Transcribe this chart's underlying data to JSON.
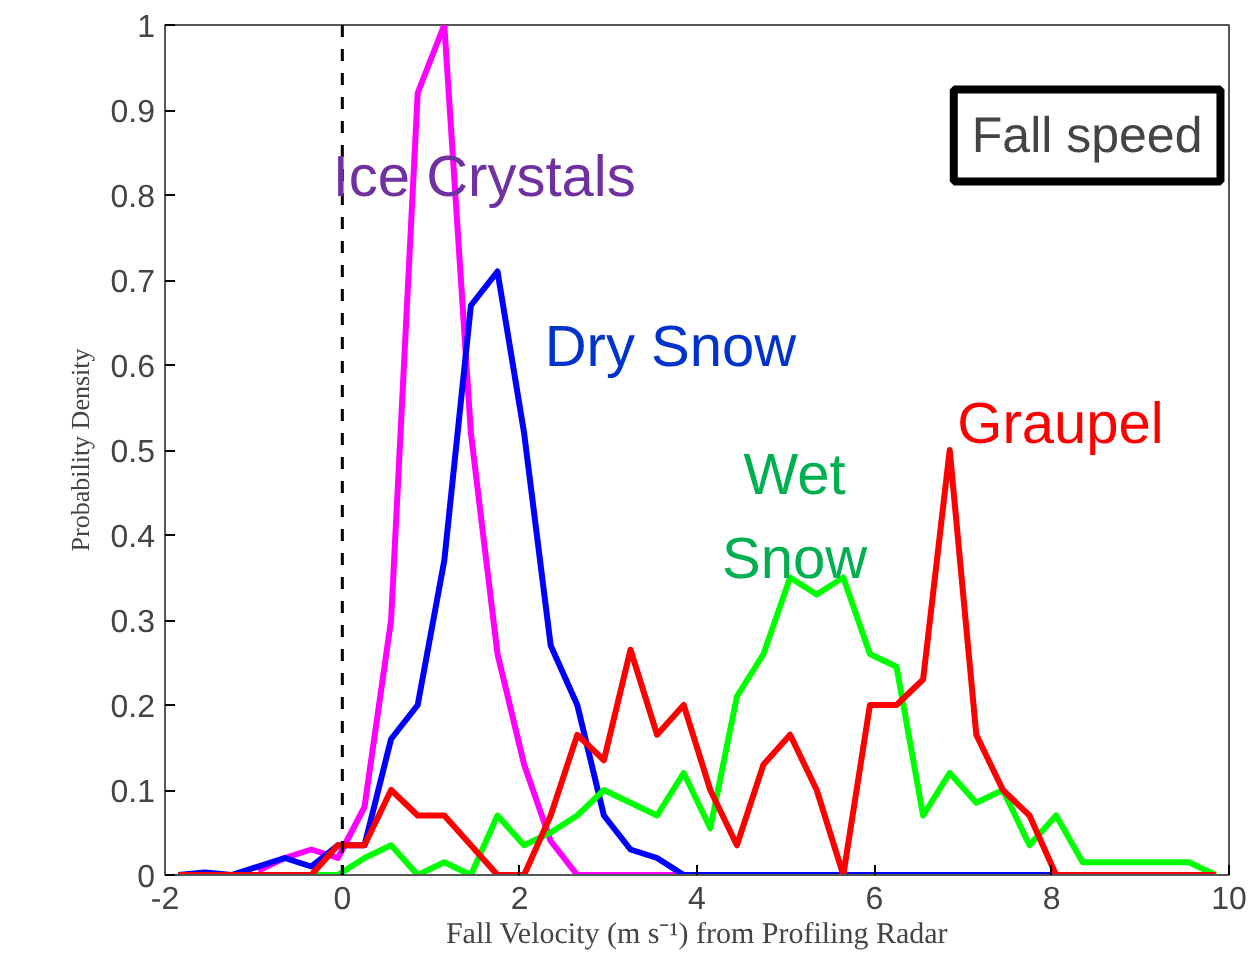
{
  "chart_data": {
    "type": "line",
    "xlabel": "Fall Velocity (m s⁻¹) from Profiling Radar",
    "ylabel": "Probability Density",
    "x": [
      -1.85,
      -1.55,
      -1.25,
      -0.95,
      -0.65,
      -0.35,
      -0.05,
      0.25,
      0.55,
      0.85,
      1.15,
      1.45,
      1.75,
      2.05,
      2.35,
      2.65,
      2.95,
      3.25,
      3.55,
      3.85,
      4.15,
      4.45,
      4.75,
      5.05,
      5.35,
      5.65,
      5.95,
      6.25,
      6.55,
      6.85,
      7.15,
      7.45,
      7.75,
      8.05,
      8.35,
      8.65,
      8.95,
      9.25,
      9.55,
      9.85
    ],
    "series": [
      {
        "name": "Ice Crystals",
        "color": "#ff00ff",
        "values": [
          null,
          null,
          null,
          0.005,
          0.02,
          0.03,
          0.02,
          0.08,
          0.3,
          0.92,
          1.0,
          0.52,
          0.26,
          0.13,
          0.04,
          0,
          0,
          0,
          0,
          0,
          null,
          null,
          null,
          null,
          null,
          null,
          null,
          null,
          null,
          null,
          null,
          null,
          null,
          null,
          null,
          null,
          null,
          null,
          null,
          null
        ]
      },
      {
        "name": "Dry Snow",
        "color": "#0000ff",
        "values": [
          0,
          0.003,
          0,
          0.01,
          0.02,
          0.01,
          0.035,
          0.035,
          0.16,
          0.2,
          0.37,
          0.67,
          0.71,
          0.52,
          0.27,
          0.2,
          0.07,
          0.03,
          0.02,
          0,
          0,
          0,
          0,
          0,
          0,
          0,
          0,
          0,
          0,
          0,
          0,
          0,
          0,
          0,
          0,
          null,
          null,
          null,
          null,
          null
        ]
      },
      {
        "name": "Wet Snow",
        "color": "#00ff00",
        "values": [
          null,
          null,
          null,
          null,
          0,
          0,
          0,
          0.02,
          0.035,
          0,
          0.015,
          0,
          0.07,
          0.035,
          0.05,
          0.07,
          0.1,
          0.085,
          0.07,
          0.12,
          0.055,
          0.21,
          0.26,
          0.35,
          0.33,
          0.35,
          0.26,
          0.245,
          0.07,
          0.12,
          0.085,
          0.1,
          0.035,
          0.07,
          0.015,
          0.015,
          0.015,
          0.015,
          0.015,
          0
        ]
      },
      {
        "name": "Graupel",
        "color": "#ff0000",
        "values": [
          0,
          0,
          0,
          0,
          0,
          0,
          0.035,
          0.035,
          0.1,
          0.07,
          0.07,
          0.035,
          0,
          0,
          0.07,
          0.165,
          0.135,
          0.265,
          0.165,
          0.2,
          0.1,
          0.035,
          0.13,
          0.165,
          0.1,
          0,
          0.2,
          0.2,
          0.23,
          0.5,
          0.165,
          0.1,
          0.07,
          0,
          0,
          0,
          0,
          0,
          0,
          0
        ]
      }
    ],
    "xlim": [
      -2,
      10
    ],
    "xticks": [
      -2,
      0,
      2,
      4,
      6,
      8,
      10
    ],
    "ylim": [
      0,
      1
    ],
    "yticks": [
      0,
      0.1,
      0.2,
      0.3,
      0.4,
      0.5,
      0.6,
      0.7,
      0.8,
      0.9,
      1
    ],
    "ref_lines": [
      {
        "axis": "x",
        "value": 0,
        "color": "#000000",
        "line_style": "dashed"
      }
    ],
    "annotations": [
      "Fall speed"
    ],
    "grid": false,
    "marker": "none",
    "line_style": "solid"
  }
}
